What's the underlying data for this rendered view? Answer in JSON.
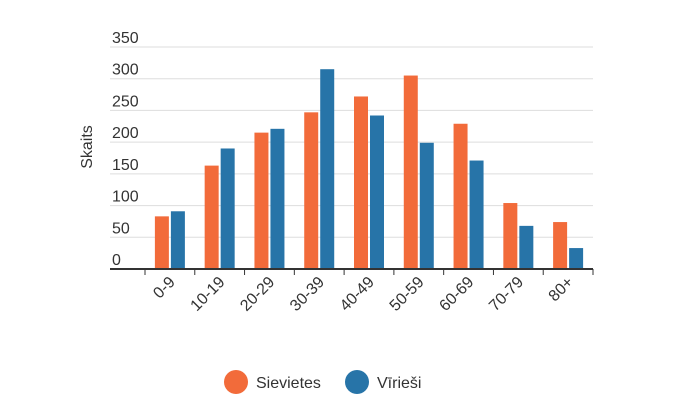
{
  "chart_data": {
    "type": "bar",
    "title": "",
    "xlabel": "",
    "ylabel": "Skaits",
    "ylim": [
      0,
      350
    ],
    "yticks": [
      0,
      50,
      100,
      150,
      200,
      250,
      300,
      350
    ],
    "categories": [
      "0-9",
      "10-19",
      "20-29",
      "30-39",
      "40-49",
      "50-59",
      "60-69",
      "70-79",
      "80+"
    ],
    "series": [
      {
        "name": "Sievietes",
        "color": "#f26b3a",
        "values": [
          83,
          163,
          215,
          247,
          272,
          305,
          229,
          104,
          74
        ]
      },
      {
        "name": "Vīrieši",
        "color": "#2774a8",
        "values": [
          91,
          190,
          221,
          315,
          242,
          199,
          171,
          68,
          33
        ]
      }
    ],
    "grid": true,
    "legend_position": "bottom"
  }
}
